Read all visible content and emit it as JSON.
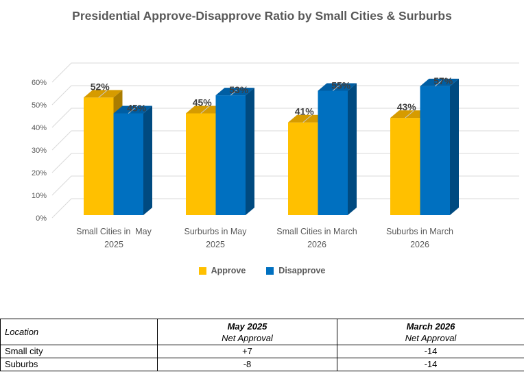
{
  "title": "Presidential Approve-Disapprove Ratio by Small Cities & Surburbs",
  "chart_data": {
    "type": "bar",
    "variant": "3d-clustered-column",
    "categories": [
      "Small Cities in  May\n2025",
      "Surburbs in May\n2025",
      "Small Cities in March\n2026",
      "Suburbs in March\n2026"
    ],
    "series": [
      {
        "name": "Approve",
        "values": [
          52,
          45,
          41,
          43
        ],
        "color": "#FFC000",
        "top_color": "#D69B00",
        "side_color": "#AA7C00"
      },
      {
        "name": "Disapprove",
        "values": [
          45,
          53,
          55,
          57
        ],
        "color": "#0070C0",
        "top_color": "#005EA3",
        "side_color": "#004A80"
      }
    ],
    "data_labels": [
      "52%",
      "45%",
      "45%",
      "53%",
      "41%",
      "55%",
      "43%",
      "57%"
    ],
    "value_suffix": "%",
    "ylim": [
      0,
      60
    ],
    "yticks": [
      0,
      10,
      20,
      30,
      40,
      50,
      60
    ],
    "ytick_labels": [
      "0%",
      "10%",
      "20%",
      "30%",
      "40%",
      "50%",
      "60%"
    ],
    "grid": true,
    "gridline_color": "#D9D9D9",
    "label_color": "#3F3F3F",
    "axis_text_color": "#595959",
    "legend_position": "bottom"
  },
  "table": {
    "col_headers": {
      "location": "Location",
      "may": {
        "line1": "May 2025",
        "line2": "Net Approval"
      },
      "march": {
        "line1": "March 2026",
        "line2": "Net Approval"
      }
    },
    "rows": [
      {
        "location": "Small city",
        "may": "+7",
        "march": "-14"
      },
      {
        "location": "Suburbs",
        "may": "-8",
        "march": "-14"
      }
    ]
  }
}
